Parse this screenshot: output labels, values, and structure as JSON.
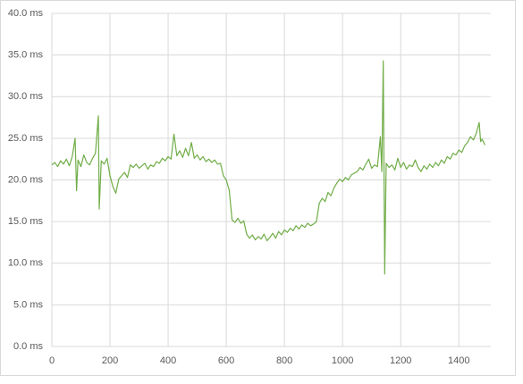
{
  "chart_data": {
    "type": "line",
    "x": [
      0,
      10,
      20,
      30,
      40,
      50,
      60,
      70,
      80,
      85,
      90,
      100,
      110,
      120,
      130,
      140,
      150,
      160,
      163,
      170,
      180,
      190,
      200,
      210,
      220,
      230,
      240,
      250,
      260,
      270,
      280,
      290,
      300,
      310,
      320,
      330,
      340,
      350,
      360,
      370,
      380,
      390,
      400,
      410,
      420,
      430,
      440,
      450,
      460,
      470,
      480,
      490,
      500,
      510,
      520,
      530,
      540,
      550,
      560,
      570,
      580,
      590,
      600,
      610,
      620,
      630,
      640,
      650,
      660,
      670,
      680,
      690,
      700,
      710,
      720,
      730,
      740,
      750,
      760,
      770,
      780,
      790,
      800,
      810,
      820,
      830,
      840,
      850,
      860,
      870,
      880,
      890,
      900,
      910,
      920,
      930,
      940,
      950,
      960,
      970,
      980,
      990,
      1000,
      1010,
      1020,
      1030,
      1040,
      1050,
      1060,
      1070,
      1080,
      1090,
      1100,
      1110,
      1120,
      1130,
      1135,
      1140,
      1145,
      1150,
      1160,
      1170,
      1180,
      1190,
      1200,
      1210,
      1220,
      1230,
      1240,
      1250,
      1260,
      1270,
      1280,
      1290,
      1300,
      1310,
      1320,
      1330,
      1340,
      1350,
      1360,
      1370,
      1380,
      1390,
      1400,
      1410,
      1420,
      1430,
      1440,
      1450,
      1460,
      1470,
      1475,
      1480,
      1490
    ],
    "series": [
      {
        "color": "#70ad47",
        "values": [
          21.8,
          22.1,
          21.6,
          22.3,
          21.9,
          22.5,
          21.7,
          22.8,
          25.0,
          18.7,
          22.4,
          21.6,
          23.0,
          22.1,
          21.8,
          22.6,
          23.2,
          27.7,
          16.5,
          22.3,
          21.9,
          22.6,
          20.5,
          19.2,
          18.4,
          20.1,
          20.5,
          20.9,
          20.3,
          21.8,
          21.5,
          21.9,
          21.4,
          21.7,
          22.0,
          21.3,
          21.8,
          21.6,
          22.2,
          22.0,
          22.6,
          22.3,
          22.8,
          22.5,
          25.5,
          22.9,
          23.5,
          22.7,
          23.8,
          22.9,
          24.5,
          22.6,
          23.0,
          22.4,
          22.8,
          22.2,
          22.5,
          22.1,
          22.4,
          21.9,
          22.0,
          20.5,
          20.0,
          18.8,
          15.2,
          14.9,
          15.4,
          14.8,
          15.1,
          13.5,
          13.0,
          13.4,
          12.8,
          13.2,
          12.9,
          13.5,
          12.7,
          13.1,
          13.6,
          13.0,
          13.8,
          13.4,
          14.0,
          13.7,
          14.2,
          13.9,
          14.5,
          14.1,
          14.6,
          14.3,
          14.8,
          14.5,
          14.7,
          15.0,
          17.2,
          17.8,
          17.4,
          18.5,
          18.1,
          19.0,
          19.6,
          20.1,
          19.8,
          20.3,
          20.0,
          20.6,
          20.8,
          21.0,
          21.5,
          21.2,
          21.9,
          22.5,
          21.4,
          21.8,
          21.6,
          25.2,
          21.0,
          34.3,
          8.7,
          22.0,
          21.5,
          21.8,
          21.2,
          22.6,
          21.5,
          22.1,
          21.3,
          21.8,
          21.6,
          22.4,
          21.5,
          21.0,
          21.7,
          21.3,
          21.9,
          21.5,
          22.1,
          21.7,
          22.4,
          22.0,
          22.8,
          22.5,
          23.2,
          23.0,
          23.6,
          23.3,
          24.1,
          24.5,
          25.2,
          24.8,
          25.6,
          26.9,
          24.6,
          24.9,
          24.2
        ]
      }
    ],
    "xlim": [
      0,
      1510
    ],
    "xticks": [
      0,
      200,
      400,
      600,
      800,
      1000,
      1200,
      1400
    ],
    "ylim": [
      0,
      40
    ],
    "yticks": [
      {
        "value": 0,
        "label": "0.0 ms"
      },
      {
        "value": 5,
        "label": "5.0 ms"
      },
      {
        "value": 10,
        "label": "10.0 ms"
      },
      {
        "value": 15,
        "label": "15.0 ms"
      },
      {
        "value": 20,
        "label": "20.0 ms"
      },
      {
        "value": 25,
        "label": "25.0 ms"
      },
      {
        "value": 30,
        "label": "30.0 ms"
      },
      {
        "value": 35,
        "label": "35.0 ms"
      },
      {
        "value": 40,
        "label": "40.0 ms"
      }
    ],
    "grid": true
  }
}
